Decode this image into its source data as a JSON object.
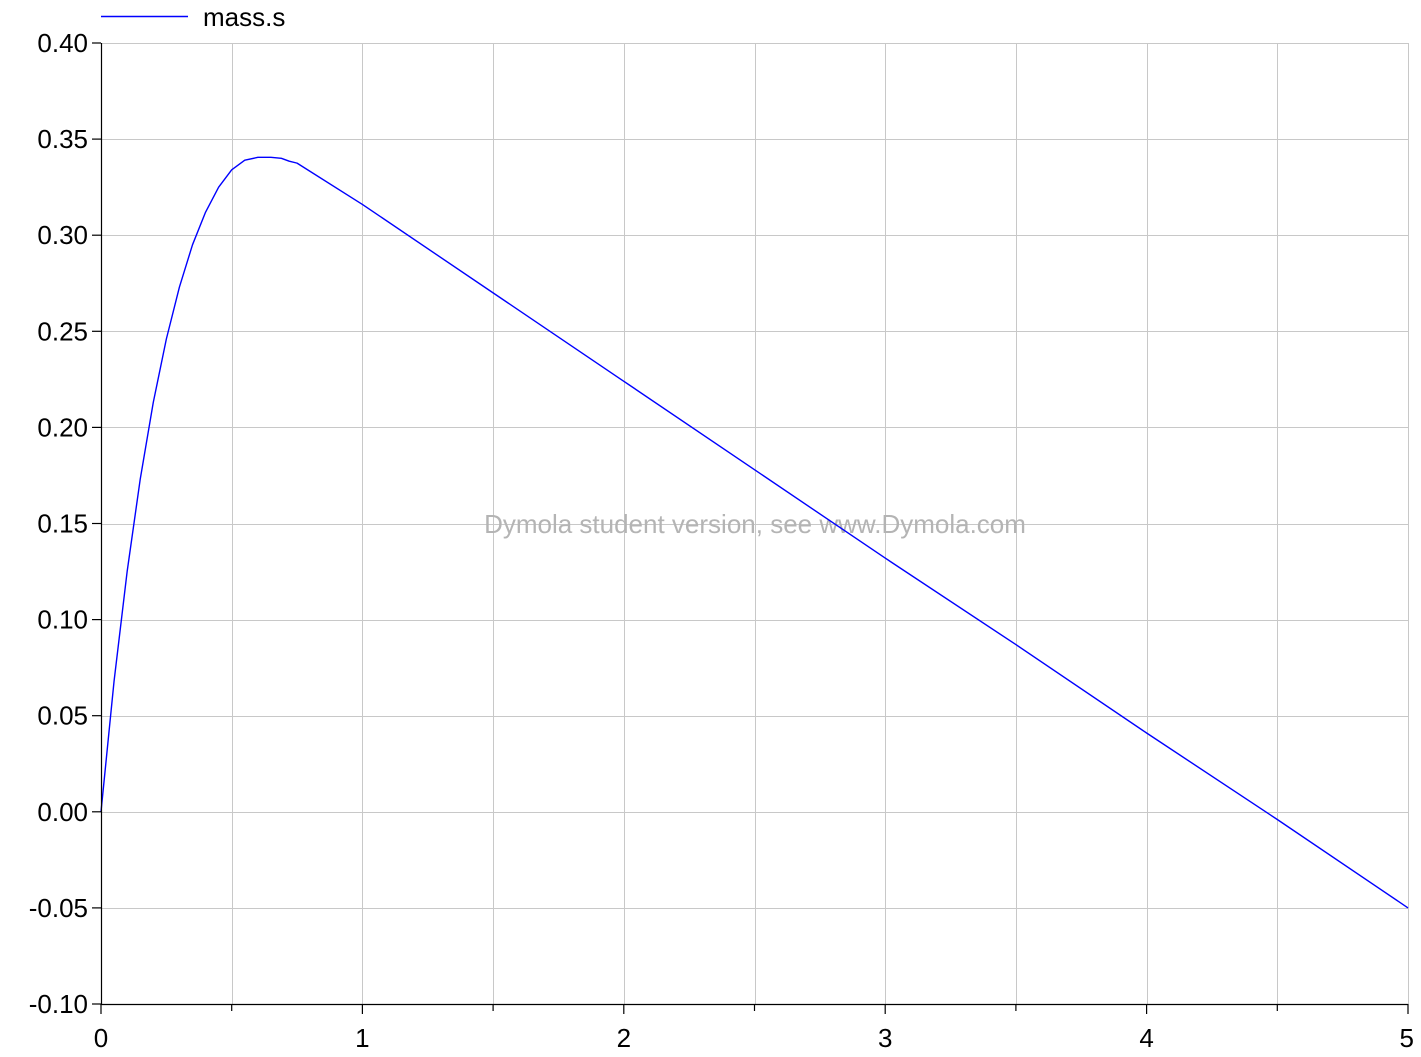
{
  "chart_data": {
    "type": "line",
    "title": "",
    "xlabel": "",
    "ylabel": "",
    "xlim": [
      0,
      5
    ],
    "ylim": [
      -0.1,
      0.4
    ],
    "x_ticks": [
      "0",
      "1",
      "2",
      "3",
      "4",
      "5"
    ],
    "x_tick_values": [
      0,
      1,
      2,
      3,
      4,
      5
    ],
    "y_ticks": [
      "-0.10",
      "-0.05",
      "0.00",
      "0.05",
      "0.10",
      "0.15",
      "0.20",
      "0.25",
      "0.30",
      "0.35",
      "0.40"
    ],
    "y_tick_values": [
      -0.1,
      -0.05,
      0.0,
      0.05,
      0.1,
      0.15,
      0.2,
      0.25,
      0.3,
      0.35,
      0.4
    ],
    "grid": true,
    "legend": {
      "position": "top-left",
      "entries": [
        "mass.s"
      ]
    },
    "watermark": "Dymola student version, see www.Dymola.com",
    "series": [
      {
        "name": "mass.s",
        "color": "#0000ff",
        "x": [
          0,
          0.05,
          0.1,
          0.15,
          0.2,
          0.25,
          0.3,
          0.35,
          0.4,
          0.45,
          0.5,
          0.55,
          0.6,
          0.65,
          0.69,
          0.72,
          0.75,
          1.0,
          1.5,
          2.0,
          2.5,
          3.0,
          3.5,
          4.0,
          4.5,
          5.0
        ],
        "y": [
          0.0,
          0.068,
          0.125,
          0.173,
          0.213,
          0.246,
          0.273,
          0.295,
          0.312,
          0.325,
          0.334,
          0.339,
          0.3405,
          0.3405,
          0.34,
          0.3385,
          0.3375,
          0.316,
          0.27,
          0.224,
          0.178,
          0.132,
          0.087,
          0.041,
          -0.004,
          -0.05
        ]
      }
    ]
  }
}
